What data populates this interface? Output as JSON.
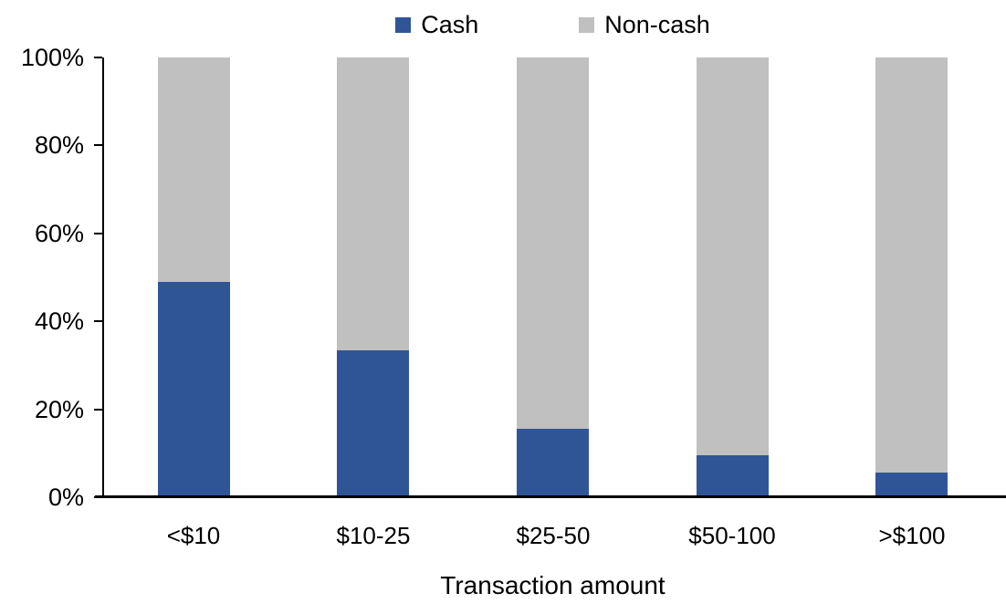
{
  "chart_data": {
    "type": "bar",
    "variant": "100-percent-stacked-column",
    "categories": [
      "<$10",
      "$10-25",
      "$25-50",
      "$50-100",
      ">$100"
    ],
    "series": [
      {
        "name": "Cash",
        "color": "#2F5597",
        "values": [
          49,
          33.5,
          15.5,
          9.5,
          5.5
        ]
      },
      {
        "name": "Non-cash",
        "color": "#C0C0C0",
        "values": [
          51,
          66.5,
          84.5,
          90.5,
          94.5
        ]
      }
    ],
    "title": "",
    "xlabel": "Transaction amount",
    "ylabel": "",
    "ylim": [
      0,
      100
    ],
    "yticks": [
      "0%",
      "20%",
      "40%",
      "60%",
      "80%",
      "100%"
    ],
    "legend_position": "top",
    "legend_labels": [
      "Cash",
      "Non-cash"
    ],
    "grid": false,
    "axis_color": "#000000",
    "text_color": "#000000"
  }
}
